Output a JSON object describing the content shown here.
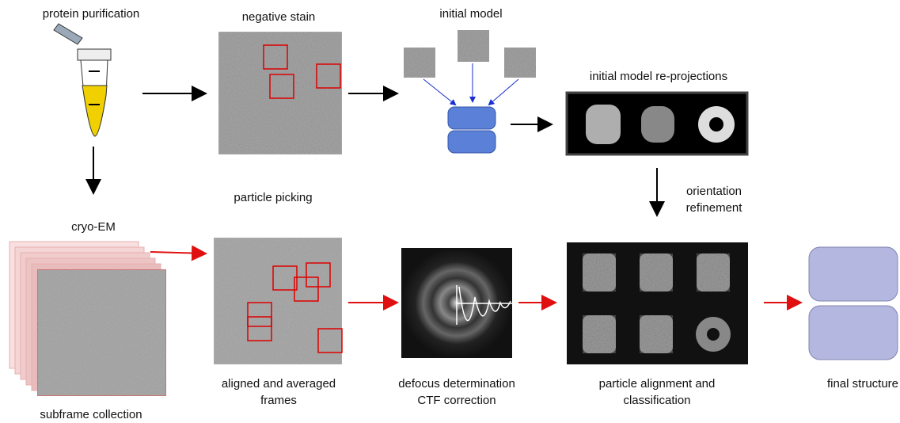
{
  "nodes": [
    {
      "lines": [
        "protein purification"
      ]
    },
    {
      "lines": [
        "negative stain"
      ]
    },
    {
      "lines": [
        "initial model"
      ]
    },
    {
      "lines": [
        "initial model re-projections"
      ]
    },
    {
      "lines": [
        "particle picking"
      ]
    },
    {
      "lines": [
        "orientation",
        "refinement"
      ]
    },
    {
      "lines": [
        "cryo-EM"
      ]
    },
    {
      "lines": [
        "subframe collection"
      ]
    },
    {
      "lines": [
        "aligned and averaged",
        "frames"
      ]
    },
    {
      "lines": [
        "defocus determination",
        "CTF correction"
      ]
    },
    {
      "lines": [
        "particle alignment and",
        "classification"
      ]
    },
    {
      "lines": [
        "final structure"
      ]
    }
  ]
}
